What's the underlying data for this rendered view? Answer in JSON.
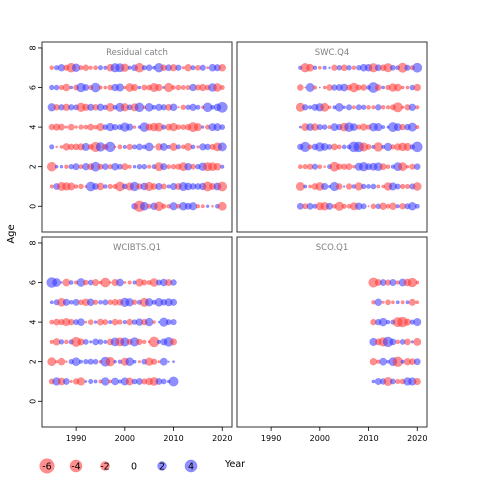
{
  "chart_data": {
    "type": "scatter",
    "subtype": "bubble",
    "ylabel": "Age",
    "xlabel": "Year",
    "xticks": [
      1990,
      2000,
      2010,
      2020
    ],
    "yticks": [
      0,
      2,
      4,
      6,
      8
    ],
    "xlim": [
      1983,
      2022
    ],
    "ylim": [
      -1.3,
      8.3
    ],
    "colors": {
      "positive": "#3333ff",
      "negative": "#ff3333",
      "frame": "#333333",
      "panel_title": "#808080"
    },
    "panels": [
      {
        "title": "Residual catch",
        "years": [
          1985,
          2020
        ],
        "ages": [
          0,
          1,
          2,
          3,
          4,
          5,
          6,
          7
        ],
        "age_start_years": {
          "0": 2002
        }
      },
      {
        "title": "SWC.Q4",
        "years": [
          1996,
          2020
        ],
        "ages": [
          0,
          1,
          2,
          3,
          4,
          5,
          6,
          7
        ],
        "age_start_years": {}
      },
      {
        "title": "WCIBTS.Q1",
        "years": [
          1985,
          2010
        ],
        "ages": [
          1,
          2,
          3,
          4,
          5,
          6
        ],
        "age_start_years": {}
      },
      {
        "title": "SCO.Q1",
        "years": [
          2011,
          2020
        ],
        "ages": [
          1,
          2,
          3,
          4,
          5,
          6
        ],
        "age_start_years": {}
      }
    ],
    "legend": {
      "values": [
        -6,
        -4,
        -2,
        0,
        2,
        4
      ],
      "labels": [
        "-6",
        "-4",
        "-2",
        "0",
        "2",
        "4"
      ],
      "title": "Year"
    }
  }
}
